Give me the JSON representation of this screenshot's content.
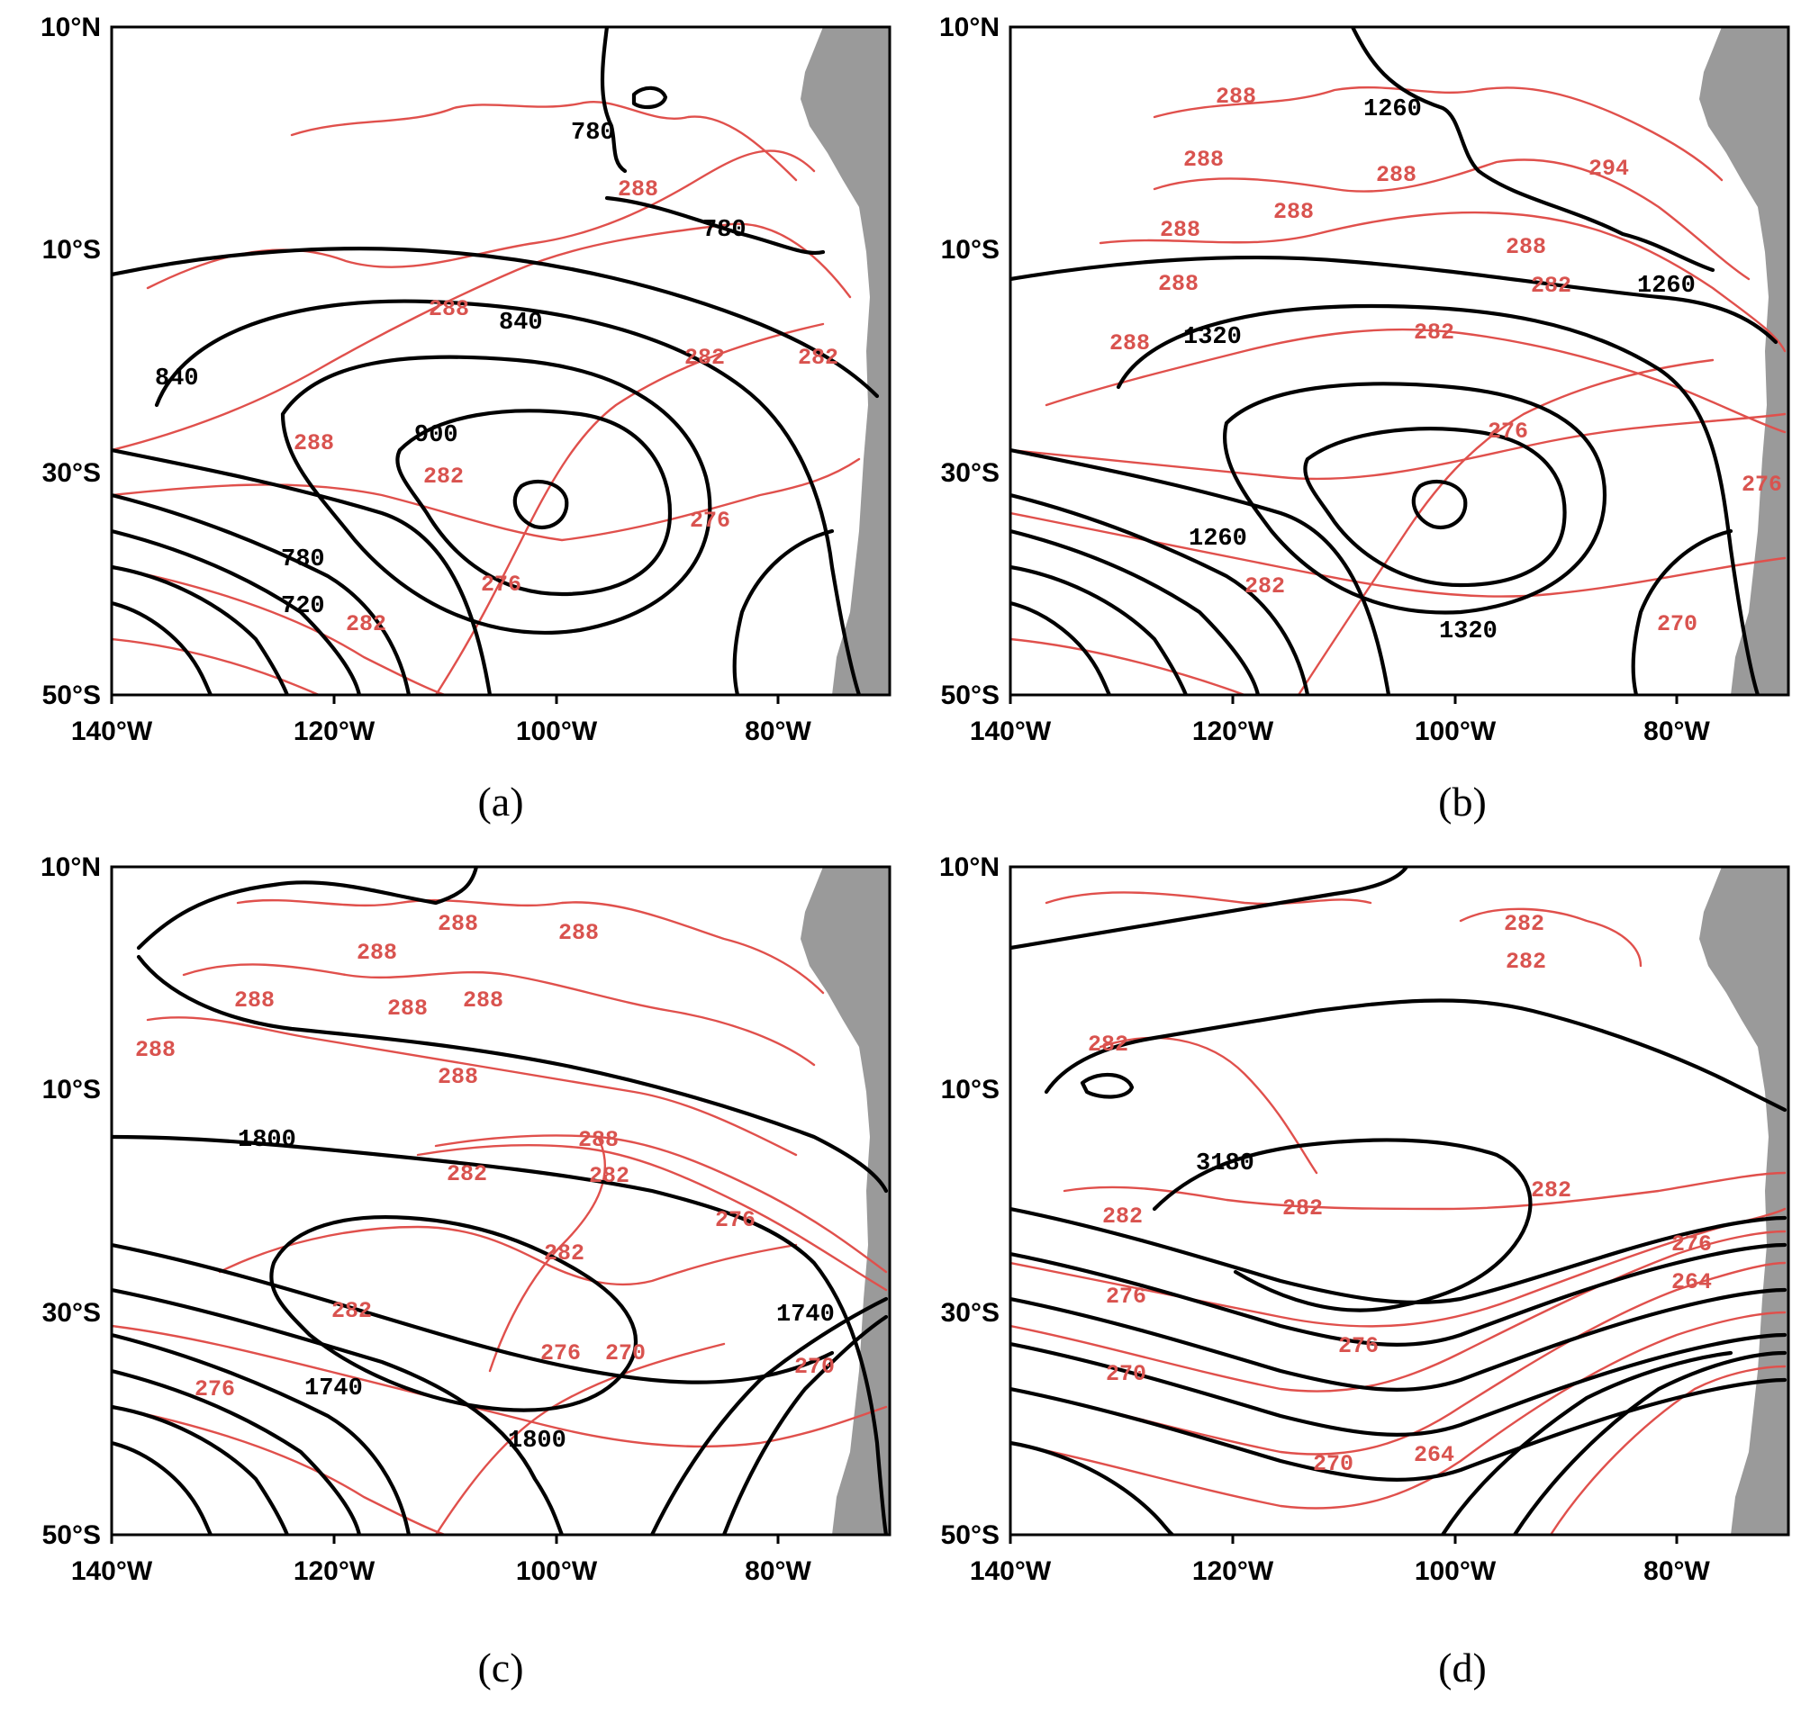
{
  "figure": {
    "colors": {
      "height_contour": "#000000",
      "temperature_contour": "#e0504c",
      "land": "#9a9a9a"
    },
    "x_ticks": [
      "140°W",
      "120°W",
      "100°W",
      "80°W"
    ],
    "y_ticks": [
      "10°N",
      "10°S",
      "30°S",
      "50°S"
    ],
    "panels": [
      {
        "caption": "(a)",
        "black_labels": [
          "780",
          "780",
          "840",
          "840",
          "900",
          "780",
          "720"
        ],
        "red_labels": [
          "288",
          "288",
          "282",
          "282",
          "288",
          "282",
          "276",
          "276",
          "282"
        ]
      },
      {
        "caption": "(b)",
        "black_labels": [
          "1260",
          "1260",
          "1320",
          "1260",
          "1320"
        ],
        "red_labels": [
          "288",
          "288",
          "288",
          "288",
          "288",
          "294",
          "288",
          "282",
          "282",
          "288",
          "288",
          "276",
          "276",
          "282",
          "270"
        ]
      },
      {
        "caption": "(c)",
        "black_labels": [
          "1800",
          "1740",
          "1740",
          "1800"
        ],
        "red_labels": [
          "288",
          "288",
          "288",
          "288",
          "288",
          "288",
          "288",
          "288",
          "288",
          "282",
          "282",
          "276",
          "282",
          "282",
          "276",
          "270",
          "270",
          "276"
        ]
      },
      {
        "caption": "(d)",
        "black_labels": [
          "3180"
        ],
        "red_labels": [
          "282",
          "282",
          "282",
          "282",
          "282",
          "282",
          "276",
          "264",
          "276",
          "276",
          "270",
          "270",
          "264"
        ]
      }
    ]
  }
}
